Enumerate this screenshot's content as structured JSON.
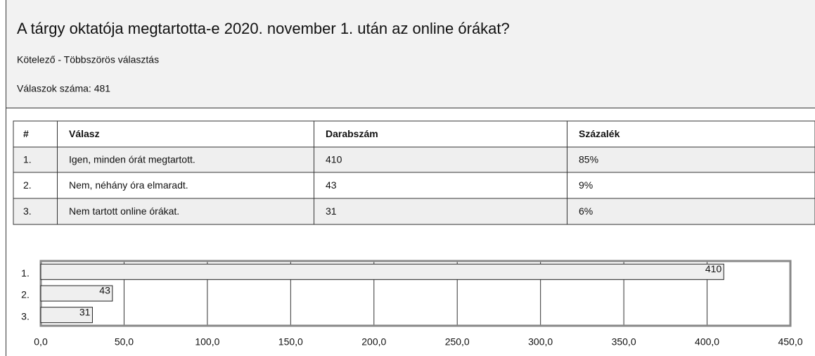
{
  "header": {
    "title": "A tárgy oktatója megtartotta-e 2020. november 1. után az online órákat?",
    "subtitle": "Kötelező - Többszörös választás",
    "count": "Válaszok száma: 481"
  },
  "table": {
    "columns": [
      "#",
      "Válasz",
      "Darabszám",
      "Százalék"
    ],
    "rows": [
      [
        "1.",
        "Igen, minden órát megtartott.",
        "410",
        "85%"
      ],
      [
        "2.",
        "Nem, néhány óra elmaradt.",
        "43",
        "9%"
      ],
      [
        "3.",
        "Nem tartott online órákat.",
        "31",
        "6%"
      ]
    ]
  },
  "chart_data": {
    "type": "bar",
    "orientation": "horizontal",
    "categories": [
      "1.",
      "2.",
      "3."
    ],
    "values": [
      410,
      43,
      31
    ],
    "color": "#efefef",
    "xlim": [
      0,
      450
    ],
    "xticks": [
      {
        "value": 0,
        "label": "0,0"
      },
      {
        "value": 50,
        "label": "50,0"
      },
      {
        "value": 100,
        "label": "100,0"
      },
      {
        "value": 150,
        "label": "150,0"
      },
      {
        "value": 200,
        "label": "200,0"
      },
      {
        "value": 250,
        "label": "250,0"
      },
      {
        "value": 300,
        "label": "300,0"
      },
      {
        "value": 350,
        "label": "350,0"
      },
      {
        "value": 400,
        "label": "400,0"
      },
      {
        "value": 450,
        "label": "450,0"
      }
    ],
    "grid": true
  }
}
